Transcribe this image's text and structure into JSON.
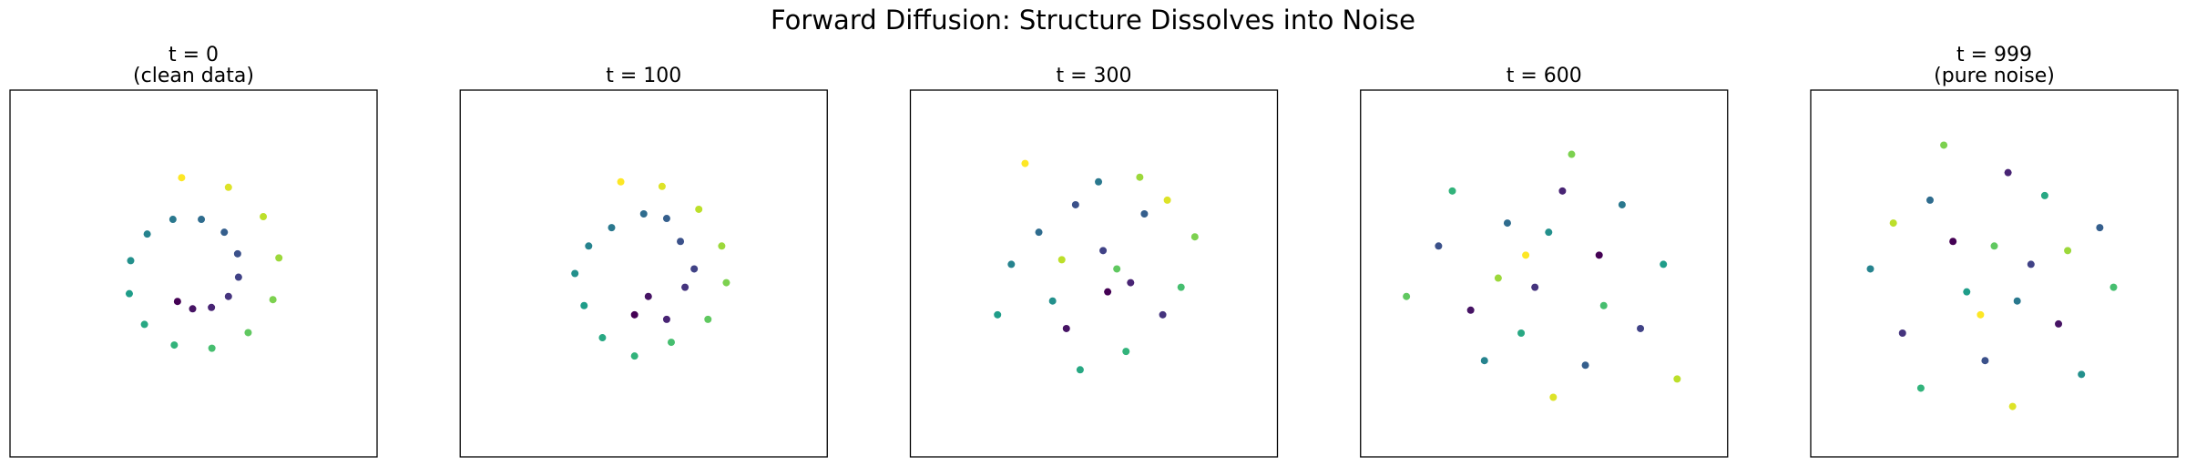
{
  "title": "Forward Diffusion: Structure Dissolves into Noise",
  "chart_data": [
    {
      "type": "scatter",
      "title": "t = 0",
      "subtitle": "(clean data)",
      "cmap": "viridis",
      "xlim": [
        -4,
        4
      ],
      "ylim": [
        -4,
        4
      ],
      "x": [
        -0.35,
        -0.02,
        0.39,
        0.76,
        0.98,
        0.96,
        0.67,
        0.17,
        -0.45,
        -1.01,
        -1.37,
        -1.4,
        -1.07,
        -0.42,
        0.4,
        1.19,
        1.73,
        1.86,
        1.52,
        0.76,
        -0.26
      ],
      "y": [
        -0.61,
        -0.77,
        -0.74,
        -0.5,
        -0.08,
        0.43,
        0.9,
        1.18,
        1.18,
        0.86,
        0.28,
        -0.44,
        -1.11,
        -1.56,
        -1.63,
        -1.29,
        -0.57,
        0.34,
        1.24,
        1.88,
        2.09
      ],
      "c": [
        0,
        0.05,
        0.1,
        0.15,
        0.2,
        0.25,
        0.3,
        0.35,
        0.4,
        0.45,
        0.5,
        0.55,
        0.6,
        0.65,
        0.7,
        0.75,
        0.8,
        0.85,
        0.9,
        0.95,
        1.0
      ]
    },
    {
      "type": "scatter",
      "title": "t = 100",
      "cmap": "viridis",
      "xlim": [
        -4,
        4
      ],
      "ylim": [
        -4,
        4
      ],
      "x": [
        -0.2,
        0.1,
        0.5,
        0.9,
        1.1,
        0.8,
        0.5,
        0.0,
        -0.7,
        -1.2,
        -1.5,
        -1.3,
        -0.9,
        -0.2,
        0.6,
        1.4,
        1.8,
        1.7,
        1.2,
        0.4,
        -0.5
      ],
      "y": [
        -0.9,
        -0.5,
        -1.0,
        -0.3,
        0.1,
        0.7,
        1.2,
        1.3,
        1.0,
        0.6,
        0.0,
        -0.7,
        -1.4,
        -1.8,
        -1.5,
        -1.0,
        -0.2,
        0.6,
        1.4,
        1.9,
        2.0
      ],
      "c": [
        0,
        0.05,
        0.1,
        0.15,
        0.2,
        0.25,
        0.3,
        0.35,
        0.4,
        0.45,
        0.5,
        0.55,
        0.6,
        0.65,
        0.7,
        0.75,
        0.8,
        0.85,
        0.9,
        0.95,
        1.0
      ]
    },
    {
      "type": "scatter",
      "title": "t = 300",
      "cmap": "viridis",
      "xlim": [
        -4,
        4
      ],
      "ylim": [
        -4,
        4
      ],
      "x": [
        0.3,
        -0.6,
        0.8,
        1.5,
        0.2,
        -0.4,
        1.1,
        -1.2,
        0.1,
        -1.8,
        -0.9,
        -2.1,
        -0.3,
        0.7,
        1.9,
        0.5,
        2.2,
        1.0,
        -0.7,
        1.6,
        -1.5
      ],
      "y": [
        -0.4,
        -1.2,
        -0.2,
        -0.9,
        0.5,
        1.5,
        1.3,
        0.9,
        2.0,
        0.2,
        -0.6,
        -0.9,
        -2.1,
        -1.7,
        -0.3,
        0.1,
        0.8,
        2.1,
        0.3,
        1.6,
        2.4
      ],
      "c": [
        0,
        0.05,
        0.1,
        0.15,
        0.2,
        0.25,
        0.3,
        0.35,
        0.4,
        0.45,
        0.5,
        0.55,
        0.6,
        0.65,
        0.7,
        0.75,
        0.8,
        0.85,
        0.9,
        0.95,
        1.0
      ]
    },
    {
      "type": "scatter",
      "title": "t = 600",
      "cmap": "viridis",
      "xlim": [
        -4,
        4
      ],
      "ylim": [
        -4,
        4
      ],
      "x": [
        1.2,
        -1.6,
        0.4,
        -0.2,
        2.1,
        -2.3,
        0.9,
        -0.8,
        1.7,
        -1.3,
        0.1,
        2.6,
        -0.5,
        -2.0,
        1.3,
        -3.0,
        0.6,
        -1.0,
        2.9,
        0.2,
        -0.4
      ],
      "y": [
        0.4,
        -0.8,
        1.8,
        -0.3,
        -1.2,
        0.6,
        -2.0,
        1.1,
        1.5,
        -1.9,
        0.9,
        0.2,
        -1.3,
        1.8,
        -0.7,
        -0.5,
        2.6,
        -0.1,
        -2.3,
        -2.7,
        0.4
      ],
      "c": [
        0,
        0.05,
        0.1,
        0.15,
        0.2,
        0.25,
        0.3,
        0.35,
        0.4,
        0.45,
        0.5,
        0.55,
        0.6,
        0.65,
        0.7,
        0.75,
        0.8,
        0.85,
        0.9,
        0.95,
        1.0
      ]
    },
    {
      "type": "scatter",
      "title": "t = 999",
      "subtitle": "(pure noise)",
      "cmap": "viridis",
      "xlim": [
        -4,
        4
      ],
      "ylim": [
        -4,
        4
      ],
      "x": [
        -0.9,
        1.4,
        0.3,
        -2.0,
        0.8,
        -0.2,
        2.3,
        -1.4,
        0.5,
        -2.7,
        1.9,
        -0.6,
        1.1,
        -1.6,
        2.6,
        0.0,
        -1.1,
        1.6,
        -2.2,
        0.4,
        -0.3
      ],
      "y": [
        0.7,
        -1.1,
        2.2,
        -1.3,
        0.2,
        -1.9,
        1.0,
        1.6,
        -0.6,
        0.1,
        -2.2,
        -0.4,
        1.7,
        -2.5,
        -0.3,
        0.6,
        2.8,
        0.5,
        1.1,
        -2.9,
        -0.9
      ],
      "c": [
        0,
        0.05,
        0.1,
        0.15,
        0.2,
        0.25,
        0.3,
        0.35,
        0.4,
        0.45,
        0.5,
        0.55,
        0.6,
        0.65,
        0.7,
        0.75,
        0.8,
        0.85,
        0.9,
        0.95,
        1.0
      ]
    }
  ]
}
